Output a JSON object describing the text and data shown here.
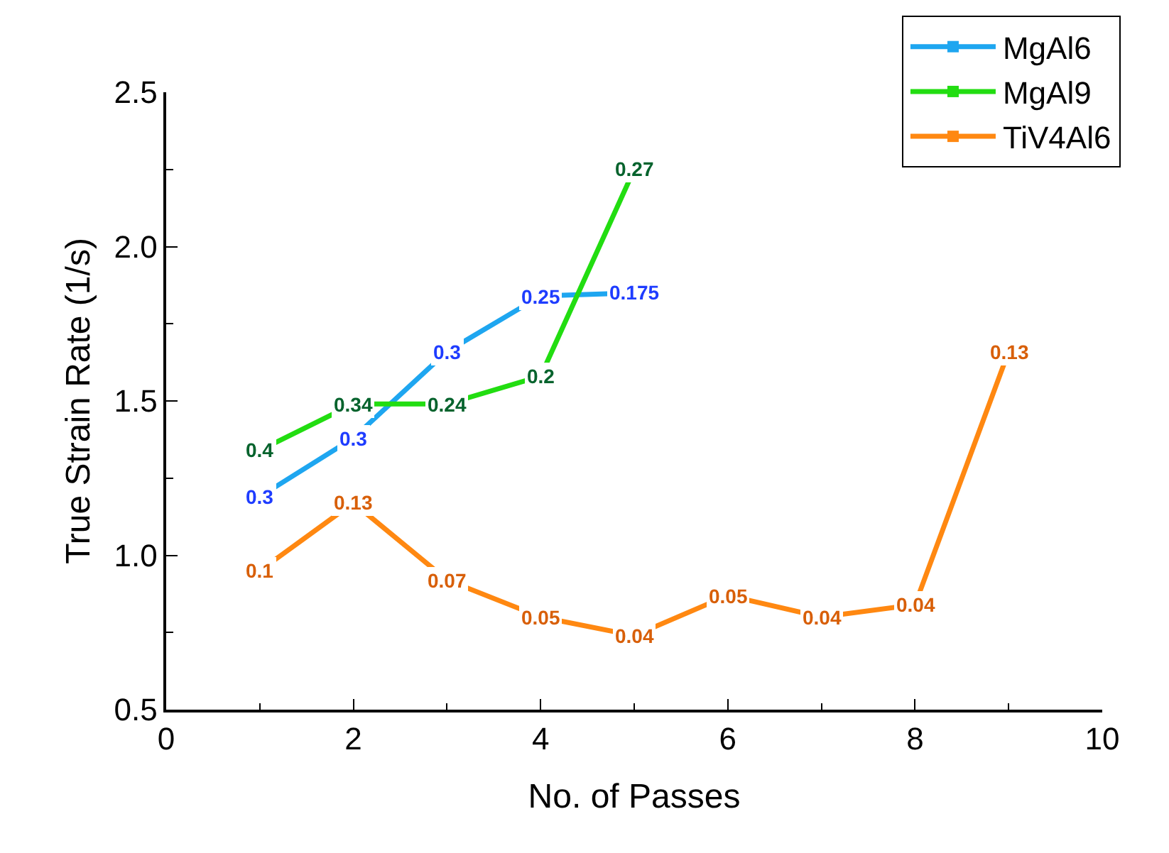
{
  "chart_data": {
    "type": "line",
    "xlabel": "No. of Passes",
    "ylabel": "True Strain Rate (1/s)",
    "x": [
      1,
      2,
      3,
      4,
      5,
      6,
      7,
      8,
      9
    ],
    "xlim": [
      0,
      10
    ],
    "xticks": [
      0,
      2,
      4,
      6,
      8,
      10
    ],
    "ylim": [
      0.5,
      2.5
    ],
    "yticks": [
      {
        "value": 0.5,
        "label": "0.5"
      },
      {
        "value": 1.0,
        "label": "1.0"
      },
      {
        "value": 1.5,
        "label": "1.5"
      },
      {
        "value": 2.0,
        "label": "2.0"
      },
      {
        "value": 2.5,
        "label": "2.5"
      }
    ],
    "legend": "top right",
    "marker": "square",
    "line_style": "solid",
    "series": [
      {
        "name": "MgAl6",
        "color": "#1ea6f0",
        "values": [
          1.19,
          1.38,
          1.66,
          1.84,
          1.85,
          null,
          null,
          null,
          null
        ]
      },
      {
        "name": "MgAl9",
        "color": "#22dd11",
        "values": [
          1.34,
          1.49,
          1.49,
          1.58,
          2.25,
          null,
          null,
          null,
          null
        ]
      },
      {
        "name": "TiV4Al6",
        "color": "#ff8811",
        "values": [
          0.95,
          1.17,
          0.92,
          0.8,
          0.74,
          0.87,
          0.8,
          0.84,
          1.66
        ]
      }
    ],
    "annotations": [
      {
        "text": "0.3",
        "x": 1,
        "y": 1.19
      },
      {
        "text": "0.3",
        "x": 2,
        "y": 1.38
      },
      {
        "text": "0.3",
        "x": 3,
        "y": 1.66
      },
      {
        "text": "0.25",
        "x": 4,
        "y": 1.84
      },
      {
        "text": "0.175",
        "x": 5,
        "y": 1.85
      },
      {
        "text": "0.4",
        "x": 1,
        "y": 1.34
      },
      {
        "text": "0.34",
        "x": 2,
        "y": 1.49
      },
      {
        "text": "0.24",
        "x": 3,
        "y": 1.49
      },
      {
        "text": "0.2",
        "x": 4,
        "y": 1.58
      },
      {
        "text": "0.27",
        "x": 5,
        "y": 2.25
      },
      {
        "text": "0.1",
        "x": 1,
        "y": 0.95
      },
      {
        "text": "0.13",
        "x": 2,
        "y": 1.17
      },
      {
        "text": "0.07",
        "x": 3,
        "y": 0.92
      },
      {
        "text": "0.05",
        "x": 4,
        "y": 0.8
      },
      {
        "text": "0.04",
        "x": 5,
        "y": 0.74
      },
      {
        "text": "0.05",
        "x": 6,
        "y": 0.87
      },
      {
        "text": "0.04",
        "x": 7,
        "y": 0.8
      },
      {
        "text": "0.04",
        "x": 8,
        "y": 0.84
      },
      {
        "text": "0.13",
        "x": 9,
        "y": 1.66
      }
    ]
  }
}
